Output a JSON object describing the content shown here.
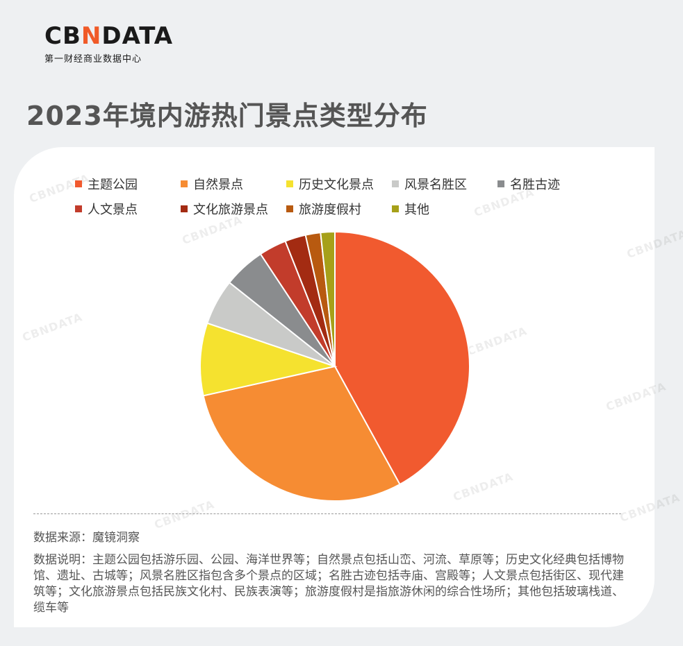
{
  "logo": {
    "word_a": "CB",
    "word_b": "N",
    "word_c": "DATA",
    "subtitle": "第一财经商业数据中心"
  },
  "title": "2023年境内游热门景点类型分布",
  "watermark": "CBNDATA",
  "chart_data": {
    "type": "pie",
    "title": "2023年境内游热门景点类型分布",
    "legend_position": "top",
    "slices": [
      {
        "label": "主题公园",
        "value": 42.0,
        "color": "#f15a2f"
      },
      {
        "label": "自然景点",
        "value": 29.5,
        "color": "#f68c33"
      },
      {
        "label": "历史文化景点",
        "value": 8.7,
        "color": "#f5e22f"
      },
      {
        "label": "风景名胜区",
        "value": 5.5,
        "color": "#c9cac8"
      },
      {
        "label": "名胜古迹",
        "value": 5.0,
        "color": "#8a8c8e"
      },
      {
        "label": "人文景点",
        "value": 3.3,
        "color": "#c23c2b"
      },
      {
        "label": "文化旅游景点",
        "value": 2.5,
        "color": "#a32b12"
      },
      {
        "label": "旅游度假村",
        "value": 1.8,
        "color": "#b85a10"
      },
      {
        "label": "其他",
        "value": 1.7,
        "color": "#a6a019"
      }
    ]
  },
  "source_text": "数据来源：魔镜洞察",
  "note_text": "数据说明：主题公园包括游乐园、公园、海洋世界等；自然景点包括山峦、河流、草原等；历史文化经典包括博物馆、遗址、古城等；风景名胜区指包含多个景点的区域；名胜古迹包括寺庙、宫殿等；人文景点包括街区、现代建筑等；文化旅游景点包括民族文化村、民族表演等；旅游度假村是指旅游休闲的综合性场所；其他包括玻璃栈道、缆车等"
}
